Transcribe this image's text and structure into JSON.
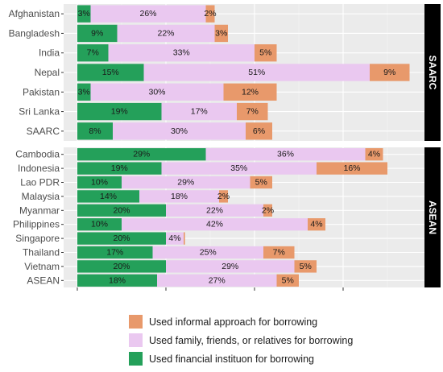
{
  "chart_data": {
    "type": "bar",
    "orientation": "horizontal",
    "stacked": true,
    "series": [
      {
        "name": "Used financial instituon for borrowing",
        "color": "#24a05a"
      },
      {
        "name": "Used family, friends, or relatives for borrowing",
        "color": "#eac8f0"
      },
      {
        "name": "Used informal approach for borrowing",
        "color": "#e8996b"
      }
    ],
    "facets": [
      {
        "label": "SAARC",
        "rows": [
          {
            "category": "Afghanistan",
            "values": [
              3,
              26,
              2
            ],
            "labels": [
              "3%",
              "26%",
              "2%"
            ]
          },
          {
            "category": "Bangladesh",
            "values": [
              9,
              22,
              3
            ],
            "labels": [
              "9%",
              "22%",
              "3%"
            ]
          },
          {
            "category": "India",
            "values": [
              7,
              33,
              5
            ],
            "labels": [
              "7%",
              "33%",
              "5%"
            ]
          },
          {
            "category": "Nepal",
            "values": [
              15,
              51,
              9
            ],
            "labels": [
              "15%",
              "51%",
              "9%"
            ]
          },
          {
            "category": "Pakistan",
            "values": [
              3,
              30,
              12
            ],
            "labels": [
              "3%",
              "30%",
              "12%"
            ]
          },
          {
            "category": "Sri Lanka",
            "values": [
              19,
              17,
              7
            ],
            "labels": [
              "19%",
              "17%",
              "7%"
            ]
          },
          {
            "category": "SAARC",
            "values": [
              8,
              30,
              6
            ],
            "labels": [
              "8%",
              "30%",
              "6%"
            ]
          }
        ]
      },
      {
        "label": "ASEAN",
        "rows": [
          {
            "category": "Cambodia",
            "values": [
              29,
              36,
              4
            ],
            "labels": [
              "29%",
              "36%",
              "4%"
            ]
          },
          {
            "category": "Indonesia",
            "values": [
              19,
              35,
              16
            ],
            "labels": [
              "19%",
              "35%",
              "16%"
            ]
          },
          {
            "category": "Lao PDR",
            "values": [
              10,
              29,
              5
            ],
            "labels": [
              "10%",
              "29%",
              "5%"
            ]
          },
          {
            "category": "Malaysia",
            "values": [
              14,
              18,
              2
            ],
            "labels": [
              "14%",
              "18%",
              "2%"
            ]
          },
          {
            "category": "Myanmar",
            "values": [
              20,
              22,
              2
            ],
            "labels": [
              "20%",
              "22%",
              "2%"
            ]
          },
          {
            "category": "Philippines",
            "values": [
              10,
              42,
              4
            ],
            "labels": [
              "10%",
              "42%",
              "4%"
            ]
          },
          {
            "category": "Singapore",
            "values": [
              20,
              4,
              0.3
            ],
            "labels": [
              "20%",
              "4%",
              ""
            ]
          },
          {
            "category": "Thailand",
            "values": [
              17,
              25,
              7
            ],
            "labels": [
              "17%",
              "25%",
              "7%"
            ]
          },
          {
            "category": "Vietnam",
            "values": [
              20,
              29,
              5
            ],
            "labels": [
              "20%",
              "29%",
              "5%"
            ]
          },
          {
            "category": "ASEAN",
            "values": [
              18,
              27,
              5
            ],
            "labels": [
              "18%",
              "27%",
              "5%"
            ]
          }
        ]
      }
    ],
    "xlim": [
      0,
      80
    ],
    "x_tick_values": [
      0,
      20,
      40,
      60
    ],
    "x_tick_labels": [
      "",
      "",
      "",
      ""
    ],
    "grid": true,
    "legend_position": "bottom",
    "legend_order": [
      2,
      1,
      0
    ]
  }
}
